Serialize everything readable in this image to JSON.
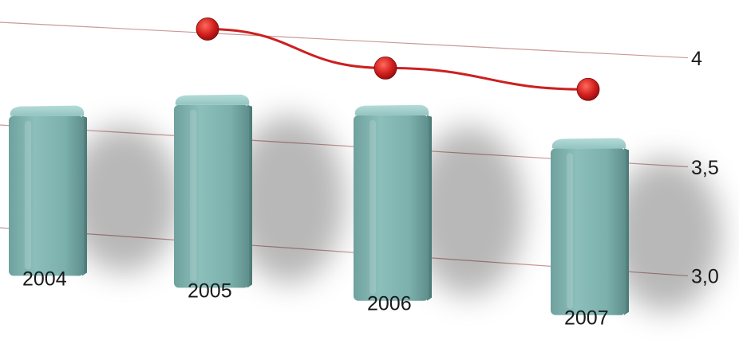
{
  "chart_data": {
    "type": "bar",
    "categories": [
      "2004",
      "2005",
      "2006",
      "2007"
    ],
    "series": [
      {
        "type": "bar",
        "values": [
          3.55,
          3.65,
          3.65,
          3.55
        ]
      },
      {
        "type": "line",
        "values": [
          null,
          4.02,
          3.88,
          3.83
        ]
      }
    ],
    "y_ticks": [
      "3,0",
      "3,5",
      "4"
    ],
    "y_tick_values": [
      3.0,
      3.5,
      4.0
    ],
    "ylim": [
      2.7,
      4.2
    ],
    "grid": true,
    "colors": {
      "bar": "#7fb0ad",
      "line": "#cc2020",
      "grid": "#c99a9a"
    }
  }
}
